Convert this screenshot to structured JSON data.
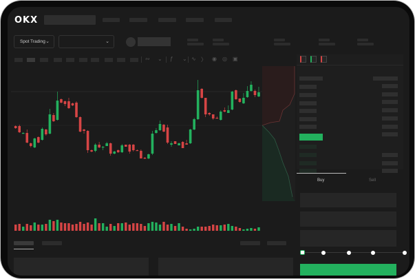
{
  "header": {
    "logo": "OKX",
    "market_selector": "Spot Trading",
    "pair_selector": ""
  },
  "icons": {
    "chevron": "chevron-down-icon",
    "tools": [
      "indicator-icon",
      "ruler-icon",
      "camera-icon",
      "settings-icon",
      "fullscreen-icon"
    ]
  },
  "order_form": {
    "tabs": [
      {
        "label": "Buy",
        "active": true
      },
      {
        "label": "Sell",
        "active": false
      }
    ],
    "slider_level": 0
  },
  "colors": {
    "up": "#23b15e",
    "down": "#d64545",
    "background": "#1b1b1b"
  },
  "chart_data": {
    "type": "candlestick",
    "candles": [
      [
        118,
        115,
        119,
        114
      ],
      [
        118,
        109,
        120,
        108
      ],
      [
        107,
        108,
        109,
        107
      ],
      [
        108,
        94,
        113,
        93
      ],
      [
        93,
        89,
        94,
        87
      ],
      [
        87,
        100,
        101,
        86
      ],
      [
        102,
        94,
        103,
        93
      ],
      [
        98,
        114,
        116,
        97
      ],
      [
        113,
        106,
        114,
        104
      ],
      [
        107,
        135,
        143,
        106
      ],
      [
        134,
        125,
        137,
        124
      ],
      [
        127,
        155,
        168,
        126
      ],
      [
        157,
        152,
        158,
        151
      ],
      [
        154,
        150,
        155,
        147
      ],
      [
        154,
        144,
        159,
        143
      ],
      [
        151,
        148,
        152,
        147
      ],
      [
        152,
        131,
        154,
        130
      ],
      [
        131,
        110,
        132,
        109
      ],
      [
        113,
        111,
        114,
        107
      ],
      [
        111,
        83,
        112,
        79
      ],
      [
        83,
        81,
        84,
        80
      ],
      [
        82,
        91,
        93,
        80
      ],
      [
        91,
        87,
        95,
        86
      ],
      [
        87,
        88,
        89,
        83
      ],
      [
        89,
        93,
        95,
        89
      ],
      [
        93,
        78,
        94,
        75
      ],
      [
        78,
        81,
        82,
        77
      ],
      [
        83,
        80,
        84,
        79
      ],
      [
        80,
        90,
        92,
        79
      ],
      [
        91,
        88,
        91,
        88
      ],
      [
        91,
        81,
        92,
        78
      ],
      [
        91,
        83,
        92,
        81
      ],
      [
        83,
        82,
        84,
        82
      ],
      [
        82,
        71,
        84,
        71
      ],
      [
        72,
        71,
        73,
        70
      ],
      [
        71,
        77,
        78,
        70
      ],
      [
        78,
        107,
        111,
        76
      ],
      [
        108,
        112,
        115,
        107
      ],
      [
        112,
        121,
        126,
        111
      ],
      [
        120,
        110,
        121,
        109
      ],
      [
        116,
        94,
        120,
        92
      ],
      [
        91,
        93,
        96,
        88
      ],
      [
        96,
        92,
        96,
        92
      ],
      [
        90,
        93,
        94,
        90
      ],
      [
        95,
        86,
        96,
        86
      ],
      [
        93,
        91,
        98,
        91
      ],
      [
        93,
        113,
        114,
        92
      ],
      [
        113,
        128,
        130,
        112
      ],
      [
        128,
        170,
        185,
        127
      ],
      [
        172,
        159,
        173,
        158
      ],
      [
        159,
        135,
        159,
        131
      ],
      [
        137,
        135,
        138,
        133
      ],
      [
        135,
        129,
        135,
        127
      ],
      [
        130,
        129,
        132,
        129
      ],
      [
        127,
        139,
        141,
        126
      ],
      [
        141,
        139,
        145,
        138
      ],
      [
        137,
        141,
        148,
        137
      ],
      [
        142,
        168,
        169,
        141
      ],
      [
        170,
        157,
        171,
        156
      ],
      [
        158,
        153,
        158,
        152
      ],
      [
        151,
        159,
        166,
        150
      ],
      [
        160,
        169,
        176,
        159
      ],
      [
        169,
        178,
        183,
        168
      ],
      [
        169,
        163,
        171,
        160
      ],
      [
        161,
        167,
        175,
        160
      ]
    ],
    "volume": [
      9,
      10,
      6,
      10,
      8,
      12,
      9,
      9,
      10,
      16,
      14,
      16,
      12,
      11,
      11,
      9,
      10,
      13,
      10,
      12,
      9,
      18,
      11,
      11,
      6,
      10,
      7,
      11,
      11,
      12,
      9,
      11,
      11,
      10,
      7,
      11,
      13,
      12,
      9,
      13,
      9,
      10,
      7,
      11,
      6,
      3,
      2,
      3,
      6,
      6,
      6,
      7,
      9,
      8,
      8,
      9,
      10,
      7,
      6,
      4,
      2,
      3,
      4,
      3,
      5
    ]
  }
}
